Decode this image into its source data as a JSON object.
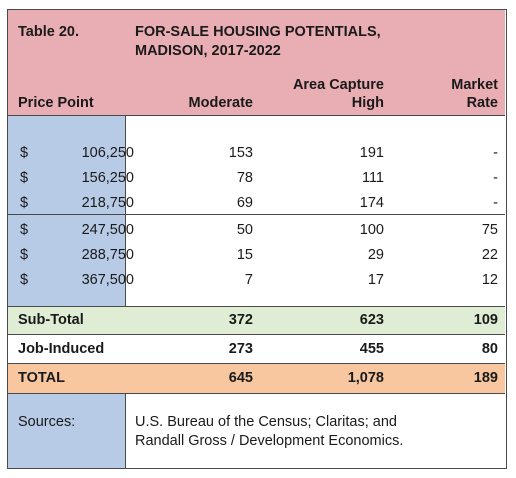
{
  "table": {
    "label": "Table 20.",
    "title_line1": "FOR-SALE HOUSING POTENTIALS,",
    "title_line2": "MADISON, 2017-2022",
    "headers": {
      "price_point": "Price Point",
      "moderate": "Moderate",
      "area_capture_line1": "Area Capture",
      "area_capture_line2": "High",
      "market_line1": "Market",
      "market_line2": "Rate"
    },
    "rows": [
      {
        "dollar": "$",
        "price": "106,250",
        "moderate": "153",
        "high": "191",
        "market": "-"
      },
      {
        "dollar": "$",
        "price": "156,250",
        "moderate": "78",
        "high": "111",
        "market": "-"
      },
      {
        "dollar": "$",
        "price": "218,750",
        "moderate": "69",
        "high": "174",
        "market": "-"
      },
      {
        "dollar": "$",
        "price": "247,500",
        "moderate": "50",
        "high": "100",
        "market": "75"
      },
      {
        "dollar": "$",
        "price": "288,750",
        "moderate": "15",
        "high": "29",
        "market": "22"
      },
      {
        "dollar": "$",
        "price": "367,500",
        "moderate": "7",
        "high": "17",
        "market": "12"
      }
    ],
    "subtotal": {
      "label": "Sub-Total",
      "moderate": "372",
      "high": "623",
      "market": "109"
    },
    "job_induced": {
      "label": "Job-Induced",
      "moderate": "273",
      "high": "455",
      "market": "80"
    },
    "total": {
      "label": "TOTAL",
      "moderate": "645",
      "high": "1,078",
      "market": "189"
    },
    "sources": {
      "label": "Sources:",
      "line1": "U.S. Bureau of the Census; Claritas; and",
      "line2": "Randall Gross / Development Economics."
    }
  },
  "colors": {
    "header_bg": "#e9aeb4",
    "price_col_bg": "#b7cbe6",
    "subtotal_bg": "#deedd4",
    "total_bg": "#f8c7a0"
  }
}
